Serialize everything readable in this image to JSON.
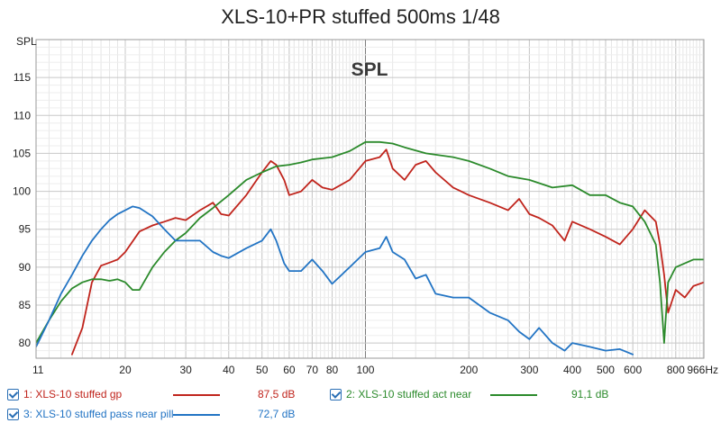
{
  "chart_data": {
    "type": "line",
    "title": "XLS-10+PR stuffed 500ms 1/48",
    "ylabel": "SPL",
    "watermark": "SPL",
    "x_scale": "log",
    "x_unit": "Hz",
    "xlim": [
      11,
      966
    ],
    "ylim": [
      78,
      120
    ],
    "x_ticks": [
      11,
      20,
      30,
      40,
      50,
      60,
      70,
      80,
      100,
      200,
      300,
      400,
      500,
      600,
      800,
      966
    ],
    "x_tick_labels": [
      "11",
      "20",
      "30",
      "40",
      "50",
      "60",
      "70",
      "80",
      "100",
      "200",
      "300",
      "400",
      "500",
      "600",
      "800",
      "966Hz"
    ],
    "y_ticks": [
      80,
      85,
      90,
      95,
      100,
      105,
      110,
      115
    ],
    "grid": true,
    "legend_position": "bottom",
    "series": [
      {
        "name": "1: XLS-10 stuffed gp",
        "color": "#c0241c",
        "legend_value": "87,5 dB",
        "x": [
          14,
          15,
          16,
          17,
          18,
          19,
          20,
          22,
          24,
          26,
          28,
          30,
          33,
          36,
          38,
          40,
          45,
          50,
          53,
          55,
          58,
          60,
          65,
          70,
          75,
          80,
          90,
          100,
          110,
          115,
          120,
          130,
          140,
          150,
          160,
          180,
          200,
          230,
          260,
          280,
          300,
          320,
          350,
          380,
          400,
          450,
          500,
          550,
          600,
          650,
          700,
          720,
          740,
          760,
          800,
          850,
          900,
          966
        ],
        "y": [
          78.5,
          82,
          88,
          90.2,
          90.6,
          91,
          92,
          94.7,
          95.5,
          96,
          96.5,
          96.2,
          97.5,
          98.5,
          97,
          96.8,
          99.5,
          102.5,
          104,
          103.5,
          101.5,
          99.5,
          100,
          101.5,
          100.5,
          100.2,
          101.5,
          104,
          104.5,
          105.5,
          103,
          101.5,
          103.5,
          104,
          102.5,
          100.5,
          99.5,
          98.5,
          97.5,
          99,
          97,
          96.5,
          95.5,
          93.5,
          96,
          95,
          94,
          93,
          95,
          97.5,
          96,
          93,
          89,
          84,
          87,
          86,
          87.5,
          88
        ]
      },
      {
        "name": "2: XLS-10 stuffed act near",
        "color": "#2b8a2b",
        "legend_value": "91,1 dB",
        "x": [
          11,
          12,
          13,
          14,
          15,
          16,
          17,
          18,
          19,
          20,
          21,
          22,
          24,
          26,
          28,
          30,
          33,
          36,
          40,
          45,
          50,
          55,
          60,
          65,
          70,
          80,
          90,
          100,
          110,
          120,
          130,
          150,
          180,
          200,
          230,
          260,
          300,
          350,
          400,
          450,
          500,
          550,
          600,
          650,
          700,
          720,
          740,
          760,
          800,
          850,
          900,
          966
        ],
        "y": [
          80,
          83,
          85.5,
          87.2,
          88,
          88.4,
          88.4,
          88.2,
          88.4,
          88,
          87,
          87,
          90,
          92,
          93.5,
          94.5,
          96.5,
          97.8,
          99.5,
          101.5,
          102.5,
          103.3,
          103.5,
          103.8,
          104.2,
          104.5,
          105.3,
          106.5,
          106.5,
          106.3,
          105.8,
          105,
          104.5,
          104,
          103,
          102,
          101.5,
          100.5,
          100.8,
          99.5,
          99.5,
          98.5,
          98,
          96,
          93,
          88,
          80,
          88,
          90,
          90.5,
          91,
          91
        ]
      },
      {
        "name": "3: XLS-10 stuffed pass near pill",
        "color": "#2274c4",
        "legend_value": "72,7 dB",
        "x": [
          11,
          12,
          13,
          14,
          15,
          16,
          17,
          18,
          19,
          20,
          21,
          22,
          24,
          26,
          28,
          30,
          33,
          36,
          38,
          40,
          45,
          50,
          53,
          55,
          58,
          60,
          65,
          70,
          75,
          80,
          90,
          100,
          110,
          115,
          120,
          130,
          140,
          150,
          160,
          180,
          200,
          230,
          260,
          280,
          300,
          320,
          350,
          380,
          400,
          450,
          500,
          550,
          600
        ],
        "y": [
          79.5,
          83,
          86.5,
          89,
          91.5,
          93.5,
          95,
          96.2,
          97,
          97.5,
          98,
          97.8,
          96.7,
          95,
          93.5,
          93.5,
          93.5,
          92,
          91.5,
          91.2,
          92.5,
          93.5,
          95,
          93.5,
          90.5,
          89.5,
          89.5,
          91,
          89.5,
          87.8,
          90,
          92,
          92.5,
          94,
          92,
          91,
          88.5,
          89,
          86.5,
          86,
          86,
          84,
          83,
          81.5,
          80.5,
          82,
          80,
          79,
          80,
          79.5,
          79,
          79.2,
          78.5
        ]
      }
    ]
  }
}
